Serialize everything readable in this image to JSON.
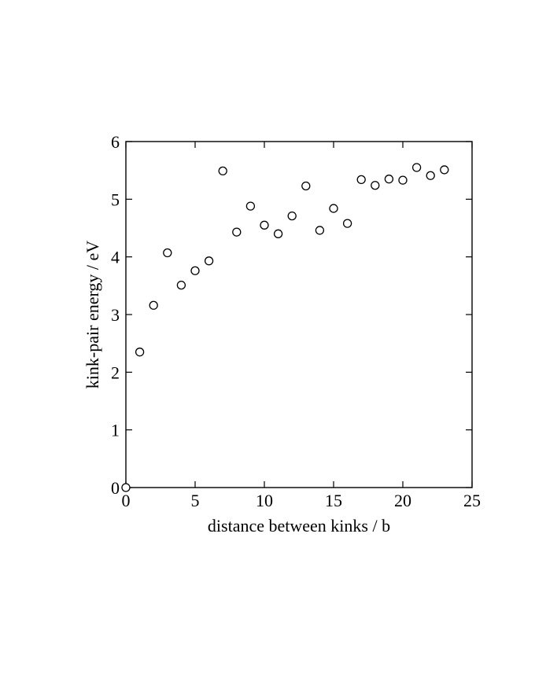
{
  "chart_data": {
    "type": "scatter",
    "title": "",
    "xlabel": "distance between kinks / b",
    "ylabel": "kink-pair energy / eV",
    "xlim": [
      0,
      25
    ],
    "ylim": [
      0,
      6
    ],
    "xticks": [
      0,
      5,
      10,
      15,
      20,
      25
    ],
    "yticks": [
      0,
      1,
      2,
      3,
      4,
      5,
      6
    ],
    "xtick_labels": [
      "0",
      "5",
      "10",
      "15",
      "20",
      "25"
    ],
    "ytick_labels": [
      "0",
      "1",
      "2",
      "3",
      "4",
      "5",
      "6"
    ],
    "grid": false,
    "marker": "open-circle",
    "colors": {
      "line": "#000000",
      "marker_fill": "#ffffff"
    },
    "series": [
      {
        "x": [
          0,
          1,
          2,
          3,
          4,
          5,
          6,
          7,
          8,
          9,
          10,
          11,
          12,
          13,
          14,
          15,
          16,
          17,
          18,
          19,
          20,
          21,
          22,
          23
        ],
        "y": [
          0.0,
          2.35,
          3.16,
          4.07,
          3.51,
          3.76,
          3.93,
          5.49,
          4.43,
          4.88,
          4.55,
          4.4,
          4.71,
          5.23,
          4.46,
          4.84,
          4.58,
          5.34,
          5.24,
          5.35,
          5.33,
          5.55,
          5.41,
          5.51
        ]
      }
    ]
  }
}
